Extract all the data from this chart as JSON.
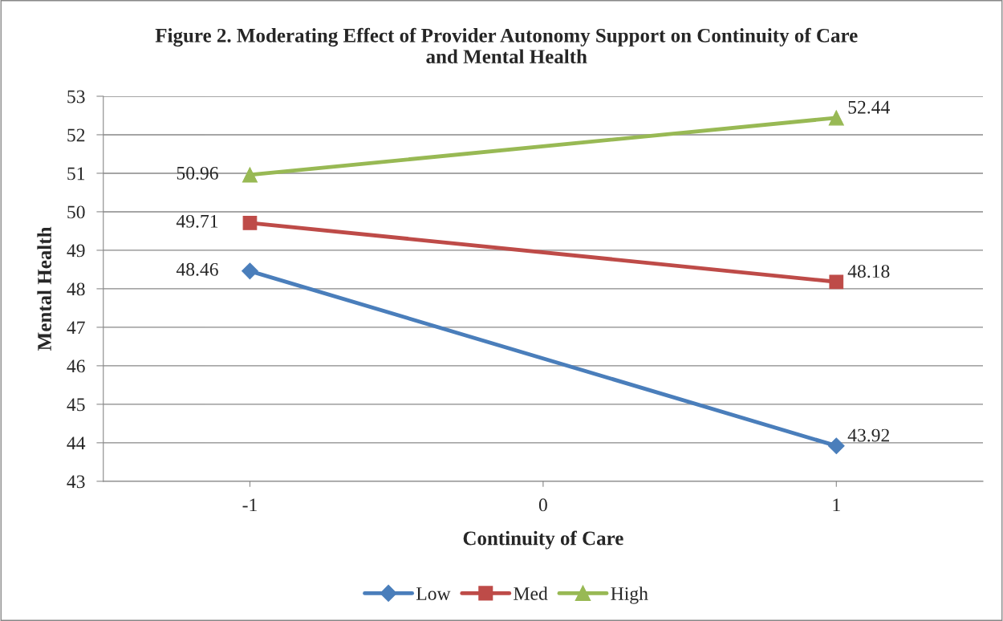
{
  "chart_data": {
    "type": "line",
    "title": "Figure 2. Moderating Effect of Provider Autonomy Support on Continuity of Care\nand Mental Health",
    "xlabel": "Continuity of Care",
    "ylabel": "Mental Health",
    "x": [
      -1,
      1
    ],
    "xlim": [
      -1.5,
      1.5
    ],
    "xticks": [
      {
        "value": -1,
        "label": "-1"
      },
      0,
      1
    ],
    "ylim": [
      43,
      53
    ],
    "yticks": [
      43,
      44,
      45,
      46,
      47,
      48,
      49,
      50,
      51,
      52,
      53
    ],
    "series": [
      {
        "name": "Low",
        "color": "#4a7ebb",
        "marker": "diamond",
        "values": [
          48.46,
          43.92
        ]
      },
      {
        "name": "Med",
        "color": "#be4b48",
        "marker": "square",
        "values": [
          49.71,
          48.18
        ]
      },
      {
        "name": "High",
        "color": "#98b954",
        "marker": "triangle",
        "values": [
          50.96,
          52.44
        ]
      }
    ],
    "data_labels": true,
    "grid": "y",
    "legend": "bottom"
  }
}
